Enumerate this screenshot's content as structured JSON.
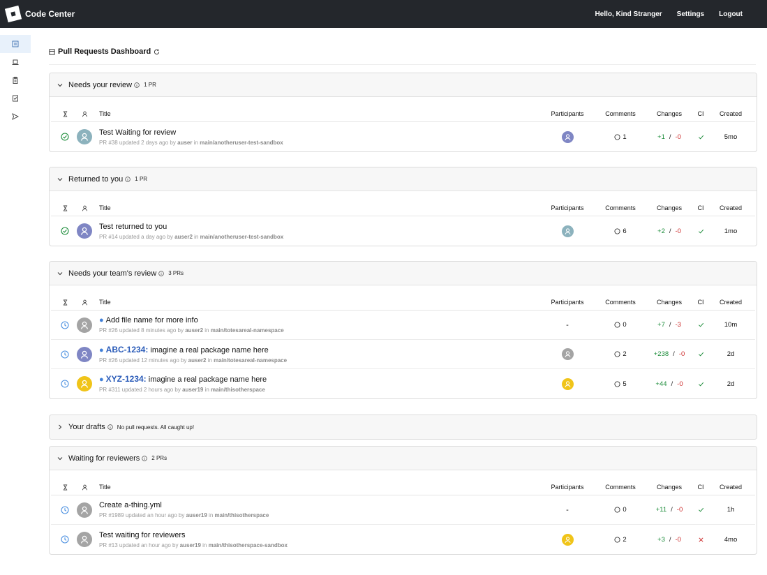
{
  "app": {
    "title": "Code Center"
  },
  "nav": {
    "greeting": "Hello, Kind Stranger",
    "settings": "Settings",
    "logout": "Logout"
  },
  "sidebar": {
    "icons": [
      "dashboard-icon",
      "laptop-icon",
      "clipboard-icon",
      "checklist-icon",
      "send-icon"
    ]
  },
  "dashboard": {
    "title": "Pull Requests Dashboard"
  },
  "columns": {
    "title": "Title",
    "participants": "Participants",
    "comments": "Comments",
    "changes": "Changes",
    "ci": "CI",
    "created": "Created"
  },
  "sections": [
    {
      "label": "Needs your review",
      "count": "1 PR",
      "expanded": true,
      "rows": [
        {
          "status": "check",
          "author_color": "#8cb2bd",
          "bullet": false,
          "ticket": "",
          "title": "Test Waiting for review",
          "pr": "PR #38",
          "updated": "updated 2 days ago by",
          "user": "auser",
          "repo": "main/anotheruser-test-sandbox",
          "participant": "#7f86c4",
          "comments": "1",
          "added": "+1",
          "removed": "-0",
          "ci": "pass",
          "created": "5mo"
        }
      ]
    },
    {
      "label": "Returned to you",
      "count": "1 PR",
      "expanded": true,
      "rows": [
        {
          "status": "check",
          "author_color": "#7f86c4",
          "bullet": false,
          "ticket": "",
          "title": "Test returned to you",
          "pr": "PR #14",
          "updated": "updated a day ago by",
          "user": "auser2",
          "repo": "main/anotheruser-test-sandbox",
          "participant": "#8cb2bd",
          "comments": "6",
          "added": "+2",
          "removed": "-0",
          "ci": "pass",
          "created": "1mo"
        }
      ]
    },
    {
      "label": "Needs your team's review",
      "count": "3 PRs",
      "expanded": true,
      "rows": [
        {
          "status": "clock",
          "author_color": "#a4a4a4",
          "bullet": true,
          "ticket": "",
          "title": "Add file name for more info",
          "pr": "PR #26",
          "updated": "updated 8 minutes ago by",
          "user": "auser2",
          "repo": "main/totesareal-namespace",
          "participant": "",
          "comments": "0",
          "added": "+7",
          "removed": "-3",
          "ci": "pass",
          "created": "10m"
        },
        {
          "status": "clock",
          "author_color": "#7f86c4",
          "bullet": true,
          "ticket": "ABC-1234:",
          "title": "imagine a real package name here",
          "pr": "PR #26",
          "updated": "updated 12 minutes ago by",
          "user": "auser2",
          "repo": "main/totesareal-namespace",
          "participant": "#a4a4a4",
          "comments": "2",
          "added": "+238",
          "removed": "-0",
          "ci": "pass",
          "created": "2d"
        },
        {
          "status": "clock",
          "author_color": "#f0c419",
          "bullet": true,
          "ticket": "XYZ-1234:",
          "title": "imagine a real package name here",
          "pr": "PR #311",
          "updated": "updated 2 hours ago by",
          "user": "auser19",
          "repo": "main/thisotherspace",
          "participant": "#f0c419",
          "comments": "5",
          "added": "+44",
          "removed": "-0",
          "ci": "pass",
          "created": "2d"
        }
      ]
    },
    {
      "label": "Your drafts",
      "count": "No pull requests. All caught up!",
      "expanded": false,
      "rows": []
    },
    {
      "label": "Waiting for reviewers",
      "count": "2 PRs",
      "expanded": true,
      "rows": [
        {
          "status": "clock",
          "author_color": "#a4a4a4",
          "bullet": false,
          "ticket": "",
          "title": "Create a-thing.yml",
          "pr": "PR #1989",
          "updated": "updated an hour ago by",
          "user": "auser19",
          "repo": "main/thisotherspace",
          "participant": "",
          "comments": "0",
          "added": "+11",
          "removed": "-0",
          "ci": "pass",
          "created": "1h"
        },
        {
          "status": "clock",
          "author_color": "#a4a4a4",
          "bullet": false,
          "ticket": "",
          "title": "Test waiting for reviewers",
          "pr": "PR #13",
          "updated": "updated an hour ago by",
          "user": "auser19",
          "repo": "main/thisotherspace-sandbox",
          "participant": "#f0c419",
          "comments": "2",
          "added": "+3",
          "removed": "-0",
          "ci": "fail",
          "created": "4mo"
        }
      ]
    }
  ],
  "empty_participant": "-"
}
